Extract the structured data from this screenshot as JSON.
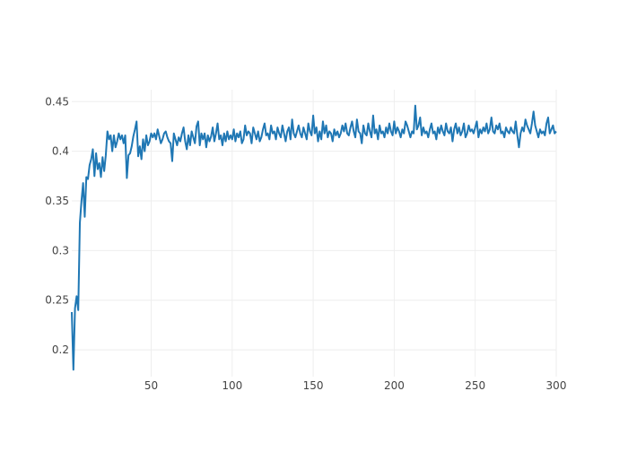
{
  "chart_data": {
    "type": "line",
    "title": "",
    "xlabel": "",
    "ylabel": "",
    "xlim": [
      1,
      300
    ],
    "ylim": [
      0.173,
      0.462
    ],
    "grid": true,
    "legend": "none",
    "x_ticks": [
      50,
      100,
      150,
      200,
      250,
      300
    ],
    "x_tick_labels": [
      "50",
      "100",
      "150",
      "200",
      "250",
      "300"
    ],
    "y_ticks": [
      0.2,
      0.25,
      0.3,
      0.35,
      0.4,
      0.45
    ],
    "y_tick_labels": [
      "0.2",
      "0.25",
      "0.3",
      "0.35",
      "0.4",
      "0.45"
    ],
    "colors": {
      "line": "#1f77b4",
      "grid": "#eeeeee",
      "tick_text": "#444444",
      "background": "#ffffff"
    },
    "series": [
      {
        "values": [
          0.238,
          0.18,
          0.242,
          0.254,
          0.24,
          0.328,
          0.35,
          0.368,
          0.334,
          0.374,
          0.372,
          0.386,
          0.392,
          0.402,
          0.375,
          0.398,
          0.382,
          0.388,
          0.374,
          0.394,
          0.38,
          0.396,
          0.42,
          0.412,
          0.416,
          0.4,
          0.416,
          0.404,
          0.41,
          0.418,
          0.412,
          0.416,
          0.408,
          0.416,
          0.373,
          0.396,
          0.398,
          0.405,
          0.415,
          0.422,
          0.43,
          0.395,
          0.405,
          0.392,
          0.412,
          0.4,
          0.416,
          0.406,
          0.41,
          0.418,
          0.414,
          0.418,
          0.412,
          0.422,
          0.415,
          0.408,
          0.412,
          0.418,
          0.42,
          0.414,
          0.41,
          0.408,
          0.39,
          0.418,
          0.412,
          0.406,
          0.414,
          0.41,
          0.418,
          0.424,
          0.41,
          0.402,
          0.416,
          0.406,
          0.42,
          0.414,
          0.408,
          0.425,
          0.43,
          0.406,
          0.418,
          0.412,
          0.418,
          0.404,
          0.416,
          0.41,
          0.415,
          0.424,
          0.41,
          0.418,
          0.428,
          0.412,
          0.416,
          0.406,
          0.418,
          0.41,
          0.42,
          0.412,
          0.416,
          0.412,
          0.422,
          0.41,
          0.418,
          0.414,
          0.42,
          0.408,
          0.412,
          0.426,
          0.416,
          0.42,
          0.418,
          0.408,
          0.424,
          0.418,
          0.412,
          0.42,
          0.41,
          0.414,
          0.422,
          0.428,
          0.416,
          0.418,
          0.412,
          0.426,
          0.418,
          0.42,
          0.412,
          0.424,
          0.418,
          0.414,
          0.426,
          0.418,
          0.41,
          0.42,
          0.424,
          0.412,
          0.432,
          0.418,
          0.414,
          0.42,
          0.426,
          0.418,
          0.414,
          0.424,
          0.418,
          0.412,
          0.428,
          0.42,
          0.416,
          0.436,
          0.418,
          0.424,
          0.41,
          0.42,
          0.412,
          0.43,
          0.418,
          0.426,
          0.414,
          0.42,
          0.418,
          0.41,
          0.422,
          0.416,
          0.42,
          0.414,
          0.418,
          0.426,
          0.42,
          0.428,
          0.418,
          0.416,
          0.424,
          0.43,
          0.42,
          0.414,
          0.432,
          0.42,
          0.418,
          0.408,
          0.426,
          0.418,
          0.416,
          0.428,
          0.42,
          0.414,
          0.436,
          0.418,
          0.422,
          0.412,
          0.426,
          0.418,
          0.42,
          0.414,
          0.424,
          0.418,
          0.428,
          0.42,
          0.416,
          0.43,
          0.418,
          0.424,
          0.42,
          0.414,
          0.422,
          0.418,
          0.43,
          0.426,
          0.42,
          0.414,
          0.42,
          0.418,
          0.446,
          0.422,
          0.426,
          0.434,
          0.416,
          0.424,
          0.418,
          0.42,
          0.414,
          0.422,
          0.428,
          0.418,
          0.42,
          0.412,
          0.424,
          0.418,
          0.426,
          0.42,
          0.416,
          0.428,
          0.42,
          0.418,
          0.424,
          0.41,
          0.422,
          0.428,
          0.418,
          0.424,
          0.416,
          0.42,
          0.428,
          0.414,
          0.418,
          0.426,
          0.42,
          0.422,
          0.418,
          0.424,
          0.43,
          0.414,
          0.422,
          0.418,
          0.424,
          0.42,
          0.428,
          0.418,
          0.422,
          0.434,
          0.42,
          0.418,
          0.426,
          0.422,
          0.428,
          0.418,
          0.42,
          0.414,
          0.424,
          0.42,
          0.418,
          0.424,
          0.42,
          0.418,
          0.43,
          0.416,
          0.404,
          0.418,
          0.424,
          0.42,
          0.432,
          0.426,
          0.422,
          0.418,
          0.428,
          0.44,
          0.426,
          0.42,
          0.414,
          0.422,
          0.418,
          0.42,
          0.416,
          0.428,
          0.434,
          0.418,
          0.422,
          0.426,
          0.418,
          0.42
        ]
      }
    ]
  }
}
